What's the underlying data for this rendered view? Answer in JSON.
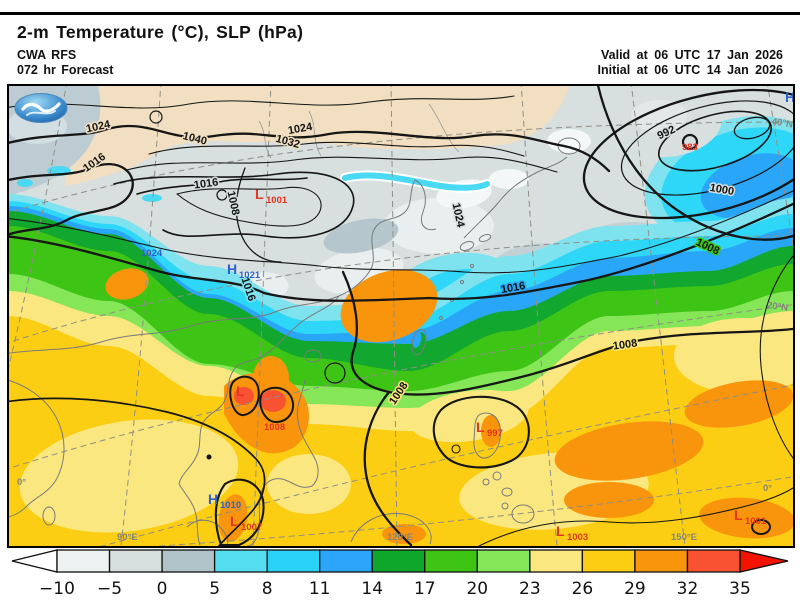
{
  "header": {
    "title": "2-m Temperature (°C), SLP (hPa)",
    "model": "CWA RFS",
    "forecast": "072 hr Forecast",
    "valid_time": "Valid at 06 UTC 17 Jan 2026",
    "initial_time": "Initial at 06 UTC 14 Jan 2026"
  },
  "map": {
    "contour_labels": [
      {
        "text": "1024"
      },
      {
        "text": "1016"
      },
      {
        "text": "1040"
      },
      {
        "text": "1032"
      },
      {
        "text": "1024"
      },
      {
        "text": "1016"
      },
      {
        "text": "1008"
      },
      {
        "text": "1016"
      },
      {
        "text": "1016"
      },
      {
        "text": "1008"
      },
      {
        "text": "1008"
      },
      {
        "text": "992"
      },
      {
        "text": "1000"
      },
      {
        "text": "1008"
      },
      {
        "text": "1024"
      }
    ],
    "lows": [
      {
        "letter": "L",
        "value": "1001"
      },
      {
        "letter": "L",
        "value": "997"
      },
      {
        "letter": "L",
        "value": "1007"
      },
      {
        "letter": "L",
        "value": "1003"
      },
      {
        "letter": "L",
        "value": "1001"
      },
      {
        "letter": "L",
        "value": "1008"
      }
    ],
    "highs": [
      {
        "letter": "H",
        "value": "1021"
      },
      {
        "letter": "H",
        "value": "1010"
      },
      {
        "letter": "H",
        "value": ""
      }
    ],
    "red_value_labels": [
      {
        "text": "983"
      }
    ],
    "blue_value_labels": [
      {
        "text": "1024"
      }
    ],
    "grid_labels": [
      {
        "text": "40°N"
      },
      {
        "text": "20°N"
      },
      {
        "text": "0°"
      },
      {
        "text": "0°"
      },
      {
        "text": "90°E"
      },
      {
        "text": "120°E"
      },
      {
        "text": "150°E"
      }
    ],
    "logo_name": "cwa-logo"
  },
  "colorbar": {
    "ticks": [
      "−10",
      "−5",
      "0",
      "5",
      "8",
      "11",
      "14",
      "17",
      "20",
      "23",
      "26",
      "29",
      "32",
      "35"
    ],
    "segment_colors": [
      "#ECF1F1",
      "#D6DEDE",
      "#AFC3C9",
      "#55DEF0",
      "#2BD2F8",
      "#2BA6F8",
      "#0FA62C",
      "#3DC415",
      "#85E657",
      "#FAE77F",
      "#FBCE13",
      "#F9950C",
      "#F85233"
    ],
    "below_color": "#FFFFFF",
    "above_color": "#F21400",
    "outline_color": "#111111"
  },
  "chart_data": {
    "type": "heatmap",
    "title": "2-m Temperature (°C), SLP (hPa)",
    "colorbar_ticks_c": [
      -10,
      -5,
      0,
      5,
      8,
      11,
      14,
      17,
      20,
      23,
      26,
      29,
      32,
      35
    ],
    "slp_contour_values_hpa": [
      1024,
      1016,
      1040,
      1032,
      1024,
      1016,
      1008,
      1016,
      1016,
      1008,
      1008,
      992,
      1000,
      1008,
      1024
    ],
    "pressure_centers": [
      {
        "type": "L",
        "value_hpa": 1001,
        "region": "northwest"
      },
      {
        "type": "L",
        "value_hpa": 983,
        "region": "northeast-cyclone"
      },
      {
        "type": "H",
        "value_hpa": 1021,
        "region": "north-center"
      },
      {
        "type": "H",
        "value_hpa": 1024,
        "region": "north-center"
      },
      {
        "type": "L",
        "value_hpa": 1008,
        "region": "indochina-heat-low"
      },
      {
        "type": "H",
        "value_hpa": 1010,
        "region": "malay"
      },
      {
        "type": "L",
        "value_hpa": 1007,
        "region": "malay"
      },
      {
        "type": "L",
        "value_hpa": 997,
        "region": "philippine-sea"
      },
      {
        "type": "L",
        "value_hpa": 1003,
        "region": "south"
      },
      {
        "type": "L",
        "value_hpa": 1001,
        "region": "southeast"
      }
    ],
    "graticule_labels": [
      "40°N",
      "20°N",
      "0°",
      "90°E",
      "120°E",
      "150°E"
    ]
  }
}
